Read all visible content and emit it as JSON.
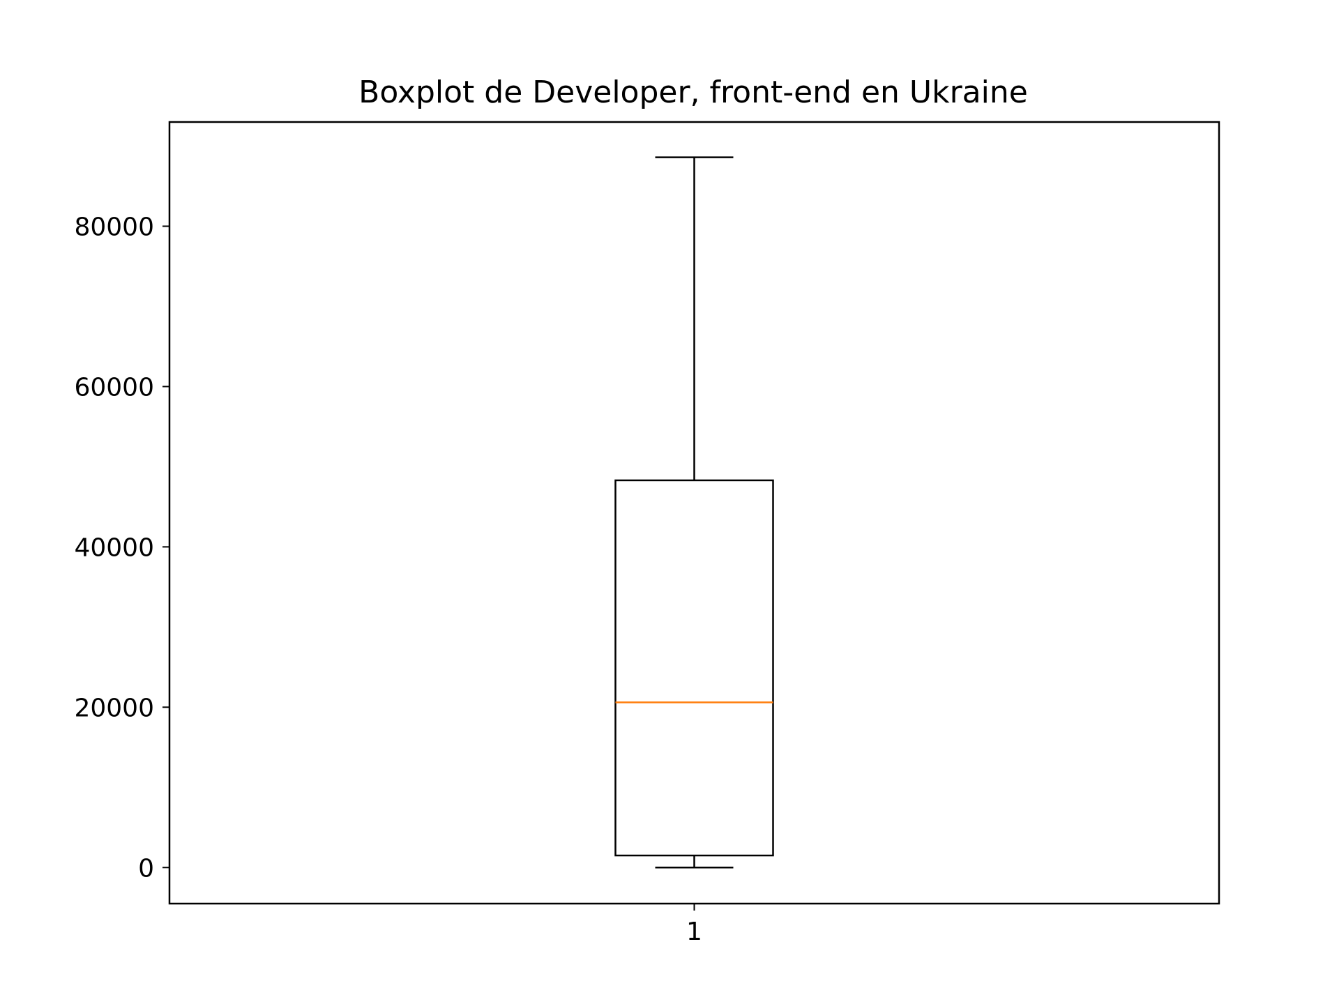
{
  "chart_data": {
    "type": "box",
    "title": "Boxplot de Developer, front-end en Ukraine",
    "xlabel": "",
    "ylabel": "",
    "categories": [
      "1"
    ],
    "boxes": [
      {
        "category": "1",
        "whisker_low": 0,
        "q1": 1500,
        "median": 20600,
        "q3": 48300,
        "whisker_high": 88600
      }
    ],
    "ylim": [
      -4500,
      93000
    ],
    "yticks": [
      0,
      20000,
      40000,
      60000,
      80000
    ],
    "ytick_labels": [
      "0",
      "20000",
      "40000",
      "60000",
      "80000"
    ],
    "grid": false,
    "colors": {
      "box": "#000000",
      "median": "#ff7f0e",
      "axes": "#000000"
    }
  }
}
